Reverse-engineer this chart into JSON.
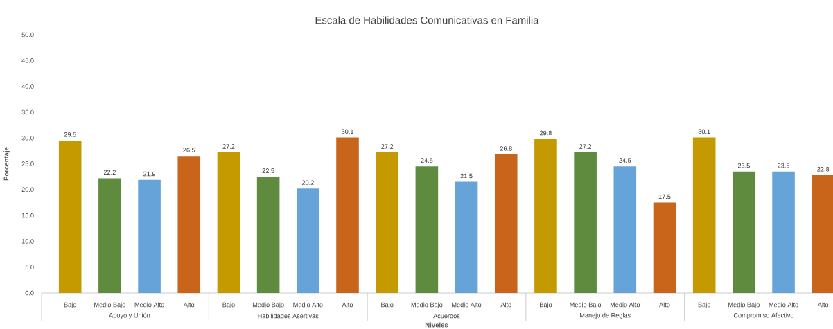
{
  "chart_data": {
    "type": "bar",
    "title": "Escala de Habilidades Comunicativas en Familia",
    "xlabel": "Niveles",
    "ylabel": "Porcentaje",
    "categories": [
      "Bajo",
      "Medio Bajo",
      "Medio Alto",
      "Alto",
      "Bajo",
      "Medio Bajo",
      "Medio Alto",
      "Alto",
      "Bajo",
      "Medio Bajo",
      "Medio Alto",
      "Alto",
      "Bajo",
      "Medio Bajo",
      "Medio Alto",
      "Alto",
      "Bajo",
      "Medio Bajo",
      "Medio Alto",
      "Alto"
    ],
    "values": [
      29.5,
      22.2,
      21.9,
      26.5,
      27.2,
      22.5,
      20.2,
      30.1,
      27.2,
      24.5,
      21.5,
      26.8,
      29.8,
      27.2,
      24.5,
      17.5,
      30.1,
      23.5,
      23.5,
      22.8
    ],
    "value_labels": [
      "29.5",
      "22.2",
      "21.9",
      "26.5",
      "27.2",
      "22.5",
      "20.2",
      "30.1",
      "27.2",
      "24.5",
      "21.5",
      "26.8",
      "29.8",
      "27.2",
      "24.5",
      "17.5",
      "30.1",
      "23.5",
      "23.5",
      "22.8"
    ],
    "colors": [
      "#c49a00",
      "#5f8b3e",
      "#65a3d9",
      "#c8651b",
      "#c49a00",
      "#5f8b3e",
      "#65a3d9",
      "#c8651b",
      "#c49a00",
      "#5f8b3e",
      "#65a3d9",
      "#c8651b",
      "#c49a00",
      "#5f8b3e",
      "#65a3d9",
      "#c8651b",
      "#c49a00",
      "#5f8b3e",
      "#65a3d9",
      "#c8651b"
    ],
    "annotations": [
      "Apoyo y Unión",
      "Habilidades Asertivas",
      "Acuerdos",
      "Manejo de Reglas",
      "Compromiso Afectivo"
    ],
    "ylim": [
      0,
      50
    ],
    "yticks": [
      {
        "value": 0,
        "label": "0.0"
      },
      {
        "value": 5,
        "label": "5.0"
      },
      {
        "value": 10,
        "label": "10.0"
      },
      {
        "value": 15,
        "label": "15.0"
      },
      {
        "value": 20,
        "label": "20.0"
      },
      {
        "value": 25,
        "label": "25.0"
      },
      {
        "value": 30,
        "label": "30.0"
      },
      {
        "value": 35,
        "label": "35.0"
      },
      {
        "value": 40,
        "label": "40.0"
      },
      {
        "value": 45,
        "label": "45.0"
      },
      {
        "value": 50,
        "label": "50.0"
      }
    ],
    "grid": false
  }
}
